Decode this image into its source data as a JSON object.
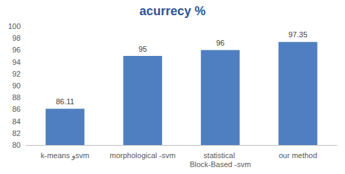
{
  "chart_data": {
    "type": "bar",
    "title": "acurrecy %",
    "categories": [
      "k-means وsvm",
      "morphological -svm",
      "statistical Block-Based -svm",
      "our method"
    ],
    "values": [
      86.11,
      95,
      96,
      97.35
    ],
    "color": "#4f7fc0",
    "ylim": [
      80,
      100
    ],
    "yticks": [
      80,
      82,
      84,
      86,
      88,
      90,
      92,
      94,
      96,
      98,
      100
    ],
    "grid": false,
    "data_labels": true
  }
}
